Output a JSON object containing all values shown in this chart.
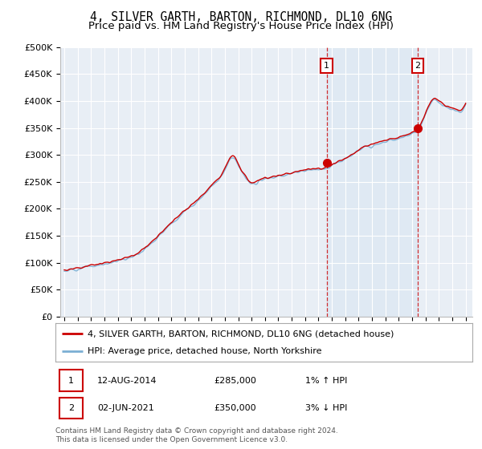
{
  "title": "4, SILVER GARTH, BARTON, RICHMOND, DL10 6NG",
  "subtitle": "Price paid vs. HM Land Registry's House Price Index (HPI)",
  "title_fontsize": 10.5,
  "subtitle_fontsize": 9.5,
  "bg_color": "#ffffff",
  "plot_bg_color": "#e8eef5",
  "grid_color": "#ffffff",
  "ylim": [
    0,
    500000
  ],
  "yticks": [
    0,
    50000,
    100000,
    150000,
    200000,
    250000,
    300000,
    350000,
    400000,
    450000,
    500000
  ],
  "ytick_labels": [
    "£0",
    "£50K",
    "£100K",
    "£150K",
    "£200K",
    "£250K",
    "£300K",
    "£350K",
    "£400K",
    "£450K",
    "£500K"
  ],
  "sale1_date": 2014.62,
  "sale1_price": 285000,
  "sale2_date": 2021.42,
  "sale2_price": 350000,
  "legend_line1": "4, SILVER GARTH, BARTON, RICHMOND, DL10 6NG (detached house)",
  "legend_line2": "HPI: Average price, detached house, North Yorkshire",
  "hpi_color": "#7bafd4",
  "price_color": "#cc0000",
  "dashed_color": "#cc0000",
  "box_color": "#cc0000",
  "shade_color": "#d0e0f0",
  "footer": "Contains HM Land Registry data © Crown copyright and database right 2024.\nThis data is licensed under the Open Government Licence v3.0."
}
